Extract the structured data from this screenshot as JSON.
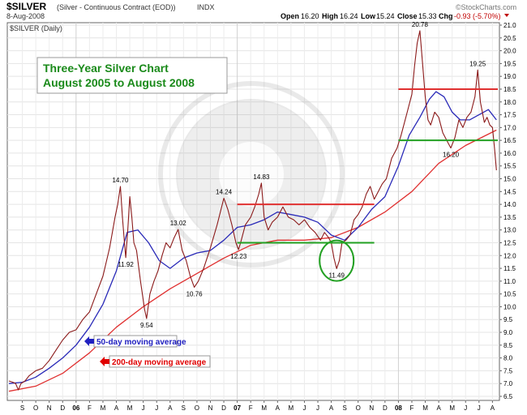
{
  "chart_data": {
    "type": "line",
    "symbol": "$SILVER",
    "instrument": "(Silver - Continuous Contract (EOD))",
    "exchange": "INDX",
    "date": "8-Aug-2008",
    "series_label": "$SILVER (Daily)",
    "watermark": "©StockCharts.com",
    "quote": {
      "open_label": "Open",
      "open": "16.20",
      "high_label": "High",
      "high": "16.24",
      "low_label": "Low",
      "low": "15.24",
      "close_label": "Close",
      "close": "15.33",
      "chg_label": "Chg",
      "chg": "-0.93 (-5.70%)"
    },
    "title_line1": "Three-Year Silver Chart",
    "title_line2": "August 2005 to August 2008",
    "ylim": [
      6.5,
      21.0
    ],
    "yticks": [
      "6.5",
      "7.0",
      "7.5",
      "8.0",
      "8.5",
      "9.0",
      "9.5",
      "10.0",
      "10.5",
      "11.0",
      "11.5",
      "12.0",
      "12.5",
      "13.0",
      "13.5",
      "14.0",
      "14.5",
      "15.0",
      "15.5",
      "16.0",
      "16.5",
      "17.0",
      "17.5",
      "18.0",
      "18.5",
      "19.0",
      "19.5",
      "20.0",
      "20.5",
      "21.0"
    ],
    "xlim": [
      0,
      36.4
    ],
    "x_unit": "months since Aug 2005",
    "xticks": [
      {
        "x": 1,
        "label": "S",
        "bold": false
      },
      {
        "x": 2,
        "label": "O",
        "bold": false
      },
      {
        "x": 3,
        "label": "N",
        "bold": false
      },
      {
        "x": 4,
        "label": "D",
        "bold": false
      },
      {
        "x": 5,
        "label": "06",
        "bold": true
      },
      {
        "x": 6,
        "label": "F",
        "bold": false
      },
      {
        "x": 7,
        "label": "M",
        "bold": false
      },
      {
        "x": 8,
        "label": "A",
        "bold": false
      },
      {
        "x": 9,
        "label": "M",
        "bold": false
      },
      {
        "x": 10,
        "label": "J",
        "bold": false
      },
      {
        "x": 11,
        "label": "J",
        "bold": false
      },
      {
        "x": 12,
        "label": "A",
        "bold": false
      },
      {
        "x": 13,
        "label": "S",
        "bold": false
      },
      {
        "x": 14,
        "label": "O",
        "bold": false
      },
      {
        "x": 15,
        "label": "N",
        "bold": false
      },
      {
        "x": 16,
        "label": "D",
        "bold": false
      },
      {
        "x": 17,
        "label": "07",
        "bold": true
      },
      {
        "x": 18,
        "label": "F",
        "bold": false
      },
      {
        "x": 19,
        "label": "M",
        "bold": false
      },
      {
        "x": 20,
        "label": "A",
        "bold": false
      },
      {
        "x": 21,
        "label": "M",
        "bold": false
      },
      {
        "x": 22,
        "label": "J",
        "bold": false
      },
      {
        "x": 23,
        "label": "J",
        "bold": false
      },
      {
        "x": 24,
        "label": "A",
        "bold": false
      },
      {
        "x": 25,
        "label": "S",
        "bold": false
      },
      {
        "x": 26,
        "label": "O",
        "bold": false
      },
      {
        "x": 27,
        "label": "N",
        "bold": false
      },
      {
        "x": 28,
        "label": "D",
        "bold": false
      },
      {
        "x": 29,
        "label": "08",
        "bold": true
      },
      {
        "x": 30,
        "label": "F",
        "bold": false
      },
      {
        "x": 31,
        "label": "M",
        "bold": false
      },
      {
        "x": 32,
        "label": "A",
        "bold": false
      },
      {
        "x": 33,
        "label": "M",
        "bold": false
      },
      {
        "x": 34,
        "label": "J",
        "bold": false
      },
      {
        "x": 35,
        "label": "J",
        "bold": false
      },
      {
        "x": 36,
        "label": "A",
        "bold": false
      }
    ],
    "series": [
      {
        "name": "$SILVER (Daily)",
        "color": "#8b1a1a",
        "points": [
          [
            0,
            7.1
          ],
          [
            0.3,
            7.05
          ],
          [
            0.5,
            7.0
          ],
          [
            0.7,
            6.75
          ],
          [
            0.9,
            7.0
          ],
          [
            1.2,
            7.1
          ],
          [
            1.5,
            7.3
          ],
          [
            2.0,
            7.5
          ],
          [
            2.5,
            7.6
          ],
          [
            3.0,
            7.9
          ],
          [
            3.5,
            8.3
          ],
          [
            4.0,
            8.7
          ],
          [
            4.5,
            9.0
          ],
          [
            5.0,
            9.1
          ],
          [
            5.5,
            9.5
          ],
          [
            6.0,
            9.8
          ],
          [
            6.5,
            10.5
          ],
          [
            7.0,
            11.2
          ],
          [
            7.5,
            12.3
          ],
          [
            7.9,
            13.5
          ],
          [
            8.1,
            14.0
          ],
          [
            8.3,
            14.7
          ],
          [
            8.45,
            13.5
          ],
          [
            8.6,
            12.5
          ],
          [
            8.7,
            11.92
          ],
          [
            8.85,
            13.0
          ],
          [
            9.0,
            14.3
          ],
          [
            9.15,
            13.5
          ],
          [
            9.3,
            12.5
          ],
          [
            9.5,
            12.2
          ],
          [
            9.8,
            11.0
          ],
          [
            10.1,
            9.9
          ],
          [
            10.25,
            9.54
          ],
          [
            10.5,
            10.5
          ],
          [
            10.8,
            11.0
          ],
          [
            11.1,
            11.4
          ],
          [
            11.4,
            12.0
          ],
          [
            11.7,
            12.5
          ],
          [
            12.0,
            12.3
          ],
          [
            12.3,
            12.7
          ],
          [
            12.6,
            13.02
          ],
          [
            12.9,
            12.2
          ],
          [
            13.2,
            11.8
          ],
          [
            13.5,
            11.2
          ],
          [
            13.8,
            10.76
          ],
          [
            14.1,
            11.0
          ],
          [
            14.5,
            11.5
          ],
          [
            15.0,
            12.3
          ],
          [
            15.5,
            13.2
          ],
          [
            16.0,
            14.24
          ],
          [
            16.3,
            13.8
          ],
          [
            16.6,
            13.2
          ],
          [
            16.9,
            12.5
          ],
          [
            17.1,
            12.23
          ],
          [
            17.3,
            12.6
          ],
          [
            17.6,
            13.2
          ],
          [
            18.0,
            13.5
          ],
          [
            18.3,
            13.9
          ],
          [
            18.6,
            14.4
          ],
          [
            18.8,
            14.83
          ],
          [
            19.0,
            13.5
          ],
          [
            19.3,
            13.0
          ],
          [
            19.6,
            13.3
          ],
          [
            20.0,
            13.5
          ],
          [
            20.4,
            13.9
          ],
          [
            20.8,
            13.5
          ],
          [
            21.2,
            13.4
          ],
          [
            21.6,
            13.2
          ],
          [
            22.0,
            13.4
          ],
          [
            22.4,
            13.1
          ],
          [
            22.8,
            12.9
          ],
          [
            23.2,
            12.6
          ],
          [
            23.5,
            12.9
          ],
          [
            23.8,
            12.7
          ],
          [
            24.0,
            12.5
          ],
          [
            24.2,
            11.9
          ],
          [
            24.4,
            11.49
          ],
          [
            24.6,
            11.8
          ],
          [
            24.8,
            12.5
          ],
          [
            25.1,
            12.6
          ],
          [
            25.4,
            12.8
          ],
          [
            25.7,
            13.4
          ],
          [
            26.0,
            13.6
          ],
          [
            26.3,
            13.9
          ],
          [
            26.6,
            14.4
          ],
          [
            26.9,
            14.7
          ],
          [
            27.2,
            14.2
          ],
          [
            27.5,
            14.5
          ],
          [
            27.8,
            14.8
          ],
          [
            28.1,
            15.0
          ],
          [
            28.5,
            15.8
          ],
          [
            28.9,
            16.2
          ],
          [
            29.2,
            16.7
          ],
          [
            29.6,
            17.5
          ],
          [
            30.0,
            18.3
          ],
          [
            30.2,
            19.4
          ],
          [
            30.4,
            20.3
          ],
          [
            30.6,
            20.78
          ],
          [
            30.8,
            19.5
          ],
          [
            31.0,
            18.2
          ],
          [
            31.2,
            17.3
          ],
          [
            31.4,
            17.1
          ],
          [
            31.7,
            17.6
          ],
          [
            32.0,
            17.4
          ],
          [
            32.3,
            16.8
          ],
          [
            32.6,
            16.5
          ],
          [
            32.9,
            16.2
          ],
          [
            33.2,
            16.6
          ],
          [
            33.5,
            17.3
          ],
          [
            33.8,
            17.0
          ],
          [
            34.1,
            17.4
          ],
          [
            34.4,
            17.6
          ],
          [
            34.7,
            18.2
          ],
          [
            34.9,
            19.25
          ],
          [
            35.1,
            18.0
          ],
          [
            35.4,
            17.2
          ],
          [
            35.6,
            17.4
          ],
          [
            35.8,
            17.1
          ],
          [
            36.0,
            17.0
          ],
          [
            36.15,
            16.2
          ],
          [
            36.3,
            15.33
          ]
        ]
      },
      {
        "name": "50-day moving average",
        "color": "#2a2ab8",
        "points": [
          [
            0,
            7.0
          ],
          [
            1,
            7.05
          ],
          [
            2,
            7.25
          ],
          [
            3,
            7.6
          ],
          [
            4,
            8.0
          ],
          [
            5,
            8.5
          ],
          [
            6,
            9.2
          ],
          [
            7,
            10.1
          ],
          [
            8,
            11.4
          ],
          [
            8.8,
            12.9
          ],
          [
            9.6,
            13.0
          ],
          [
            10.4,
            12.5
          ],
          [
            11.2,
            11.8
          ],
          [
            12,
            11.5
          ],
          [
            13,
            11.9
          ],
          [
            14,
            12.1
          ],
          [
            15,
            12.2
          ],
          [
            16,
            12.6
          ],
          [
            17,
            13.1
          ],
          [
            18,
            13.2
          ],
          [
            19,
            13.4
          ],
          [
            20,
            13.7
          ],
          [
            21,
            13.6
          ],
          [
            22,
            13.5
          ],
          [
            23,
            13.3
          ],
          [
            24,
            12.8
          ],
          [
            25,
            12.6
          ],
          [
            26,
            13.1
          ],
          [
            27,
            13.8
          ],
          [
            28,
            14.3
          ],
          [
            29,
            15.5
          ],
          [
            29.8,
            16.7
          ],
          [
            30.6,
            17.4
          ],
          [
            31.3,
            18.1
          ],
          [
            31.8,
            18.4
          ],
          [
            32.4,
            18.2
          ],
          [
            33,
            17.6
          ],
          [
            33.6,
            17.3
          ],
          [
            34.3,
            17.3
          ],
          [
            35,
            17.5
          ],
          [
            35.7,
            17.7
          ],
          [
            36.3,
            17.3
          ]
        ]
      },
      {
        "name": "200-day moving average",
        "color": "#e03030",
        "points": [
          [
            0,
            6.7
          ],
          [
            2,
            6.9
          ],
          [
            4,
            7.4
          ],
          [
            6,
            8.2
          ],
          [
            8,
            9.2
          ],
          [
            10,
            10.0
          ],
          [
            12,
            10.7
          ],
          [
            14,
            11.3
          ],
          [
            16,
            11.9
          ],
          [
            18,
            12.4
          ],
          [
            20,
            12.6
          ],
          [
            22,
            12.6
          ],
          [
            24,
            12.7
          ],
          [
            26,
            13.1
          ],
          [
            28,
            13.7
          ],
          [
            30,
            14.5
          ],
          [
            32,
            15.6
          ],
          [
            34,
            16.3
          ],
          [
            36.3,
            16.9
          ]
        ]
      }
    ],
    "resistance_support_lines": [
      {
        "y": 14.0,
        "x1": 17.0,
        "x2": 27.2,
        "color": "red"
      },
      {
        "y": 12.5,
        "x1": 17.0,
        "x2": 27.2,
        "color": "green"
      },
      {
        "y": 18.5,
        "x1": 29.0,
        "x2": 36.4,
        "color": "red"
      },
      {
        "y": 16.5,
        "x1": 29.0,
        "x2": 36.4,
        "color": "green"
      }
    ],
    "circle_marker": {
      "x": 24.4,
      "y": 11.8,
      "color": "green"
    },
    "annotations": [
      {
        "x": 8.3,
        "y": 14.7,
        "text": "14.70",
        "pos": "above"
      },
      {
        "x": 8.7,
        "y": 11.92,
        "text": "11.92",
        "pos": "below"
      },
      {
        "x": 10.25,
        "y": 9.54,
        "text": "9.54",
        "pos": "below"
      },
      {
        "x": 12.6,
        "y": 13.02,
        "text": "13.02",
        "pos": "above"
      },
      {
        "x": 13.8,
        "y": 10.76,
        "text": "10.76",
        "pos": "below"
      },
      {
        "x": 16.0,
        "y": 14.24,
        "text": "14.24",
        "pos": "above"
      },
      {
        "x": 17.1,
        "y": 12.23,
        "text": "12.23",
        "pos": "below"
      },
      {
        "x": 18.8,
        "y": 14.83,
        "text": "14.83",
        "pos": "above"
      },
      {
        "x": 24.4,
        "y": 11.49,
        "text": "11.49",
        "pos": "below"
      },
      {
        "x": 30.6,
        "y": 20.78,
        "text": "20.78",
        "pos": "above"
      },
      {
        "x": 32.9,
        "y": 16.2,
        "text": "16.20",
        "pos": "below"
      },
      {
        "x": 34.9,
        "y": 19.25,
        "text": "19.25",
        "pos": "above"
      }
    ],
    "legend": [
      {
        "text": "50-day moving average",
        "color": "#2020c0"
      },
      {
        "text": "200-day moving average",
        "color": "#e00000"
      }
    ],
    "grid": true
  }
}
